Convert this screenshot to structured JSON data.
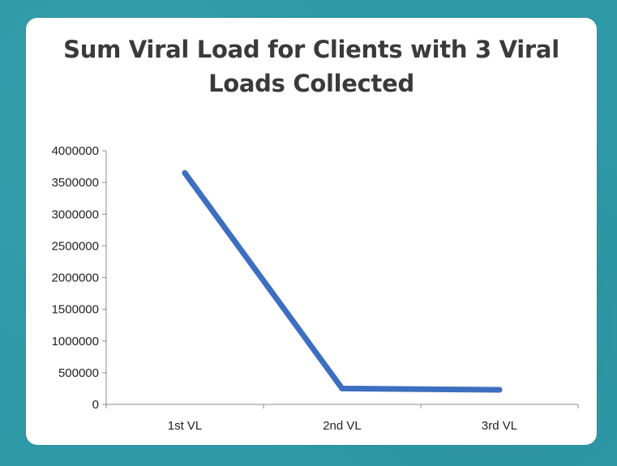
{
  "chart_data": {
    "type": "line",
    "title_lines": [
      "Sum Viral Load for Clients with 3 Viral",
      "Loads Collected"
    ],
    "categories": [
      "1st VL",
      "2nd VL",
      "3rd VL"
    ],
    "series": [
      {
        "values": [
          3650000,
          250000,
          230000
        ]
      }
    ],
    "ylim": [
      0,
      4000000
    ],
    "yticks": [
      0,
      500000,
      1000000,
      1500000,
      2000000,
      2500000,
      3000000,
      3500000,
      4000000
    ],
    "ytick_labels": [
      "0",
      "500000",
      "1000000",
      "1500000",
      "2000000",
      "2500000",
      "3000000",
      "3500000",
      "4000000"
    ],
    "grid": false,
    "legend": "none",
    "colors": {
      "series": "#3c6fbf",
      "axis": "#8c8c8c",
      "background": "#2e9aa8"
    }
  }
}
